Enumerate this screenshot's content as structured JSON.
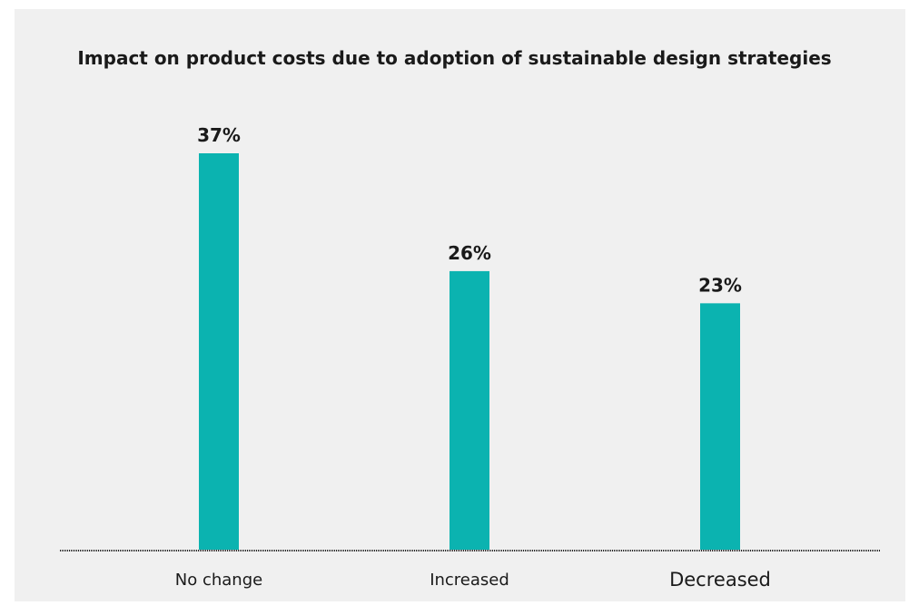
{
  "chart_data": {
    "type": "bar",
    "title": "Impact on product costs due to adoption of sustainable design strategies",
    "categories": [
      "No change",
      "Increased",
      "Decreased"
    ],
    "values": [
      37,
      26,
      23
    ],
    "value_labels": [
      "37%",
      "26%",
      "23%"
    ],
    "unit": "%",
    "ylim": [
      0,
      37
    ],
    "grid": false,
    "legend": "none",
    "bar_color": "#0bb3b0",
    "baseline_style": "dotted"
  }
}
